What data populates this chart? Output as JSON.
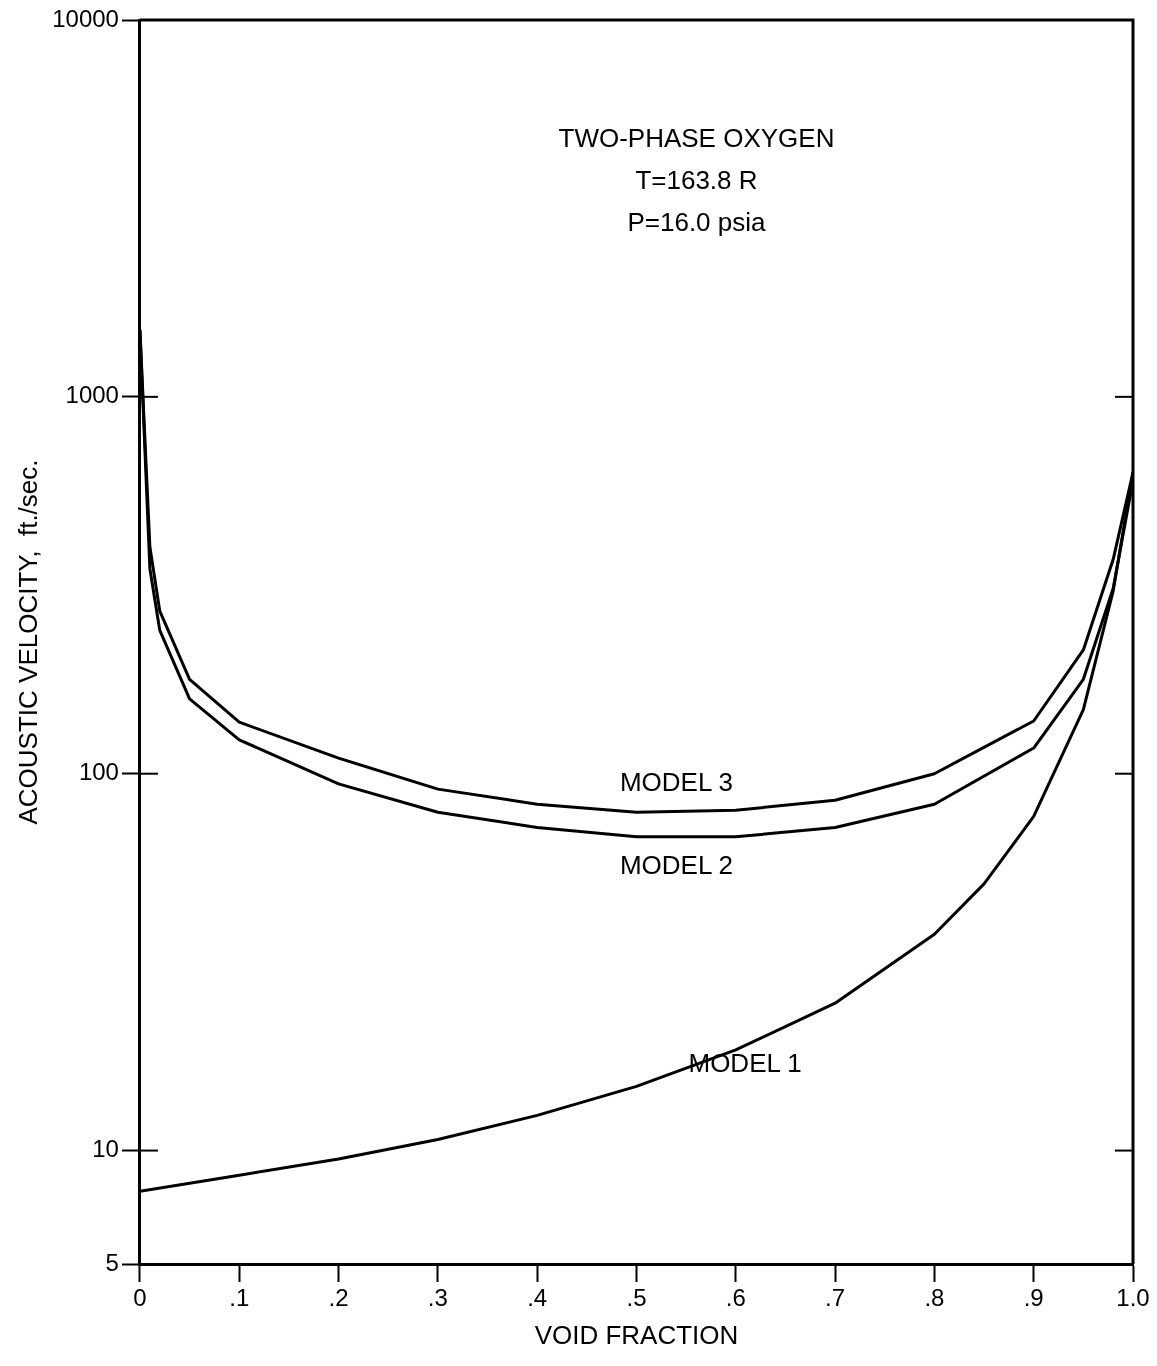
{
  "chart_data": {
    "type": "line",
    "title": "TWO-PHASE OXYGEN",
    "annotations": [
      "T=163.8 R",
      "P=16.0 psia"
    ],
    "xlabel": "VOID FRACTION",
    "ylabel": "ACOUSTIC VELOCITY,  ft./sec.",
    "log": true,
    "grid": false,
    "legend": false,
    "marker": "none",
    "line_style": "solid",
    "xlim": [
      0,
      1
    ],
    "xticks": [
      0,
      {
        "value": 0.1,
        "label": ".1"
      },
      {
        "value": 0.2,
        "label": ".2"
      },
      {
        "value": 0.3,
        "label": ".3"
      },
      {
        "value": 0.4,
        "label": ".4"
      },
      {
        "value": 0.5,
        "label": ".5"
      },
      {
        "value": 0.6,
        "label": ".6"
      },
      {
        "value": 0.7,
        "label": ".7"
      },
      {
        "value": 0.8,
        "label": ".8"
      },
      {
        "value": 0.9,
        "label": ".9"
      },
      {
        "value": 1,
        "label": "1.0"
      }
    ],
    "ylim": [
      5,
      10000
    ],
    "yticks": [
      5,
      10,
      100,
      1000,
      10000
    ],
    "series": [
      {
        "name": "MODEL 3",
        "color": "#000000",
        "x": [
          0,
          0.01,
          0.02,
          0.05,
          0.1,
          0.2,
          0.3,
          0.4,
          0.5,
          0.6,
          0.7,
          0.8,
          0.9,
          0.95,
          0.98,
          1
        ],
        "values": [
          1500,
          400,
          270,
          178,
          137,
          110,
          91,
          83,
          79,
          80,
          85,
          100,
          138,
          213,
          370,
          630
        ]
      },
      {
        "name": "MODEL 2",
        "color": "#000000",
        "x": [
          0,
          0.01,
          0.02,
          0.05,
          0.1,
          0.2,
          0.3,
          0.4,
          0.5,
          0.6,
          0.7,
          0.8,
          0.9,
          0.95,
          0.98,
          1
        ],
        "values": [
          1500,
          350,
          240,
          158,
          123,
          94,
          79,
          72,
          68,
          68,
          72,
          83,
          117,
          178,
          310,
          600
        ]
      },
      {
        "name": "MODEL 1",
        "color": "#000000",
        "x": [
          0,
          0.1,
          0.2,
          0.3,
          0.4,
          0.5,
          0.6,
          0.7,
          0.8,
          0.85,
          0.9,
          0.95,
          0.98,
          1
        ],
        "values": [
          7.8,
          8.6,
          9.5,
          10.7,
          12.4,
          14.8,
          18.5,
          24.6,
          37.5,
          51,
          77,
          148,
          305,
          630
        ]
      }
    ]
  }
}
